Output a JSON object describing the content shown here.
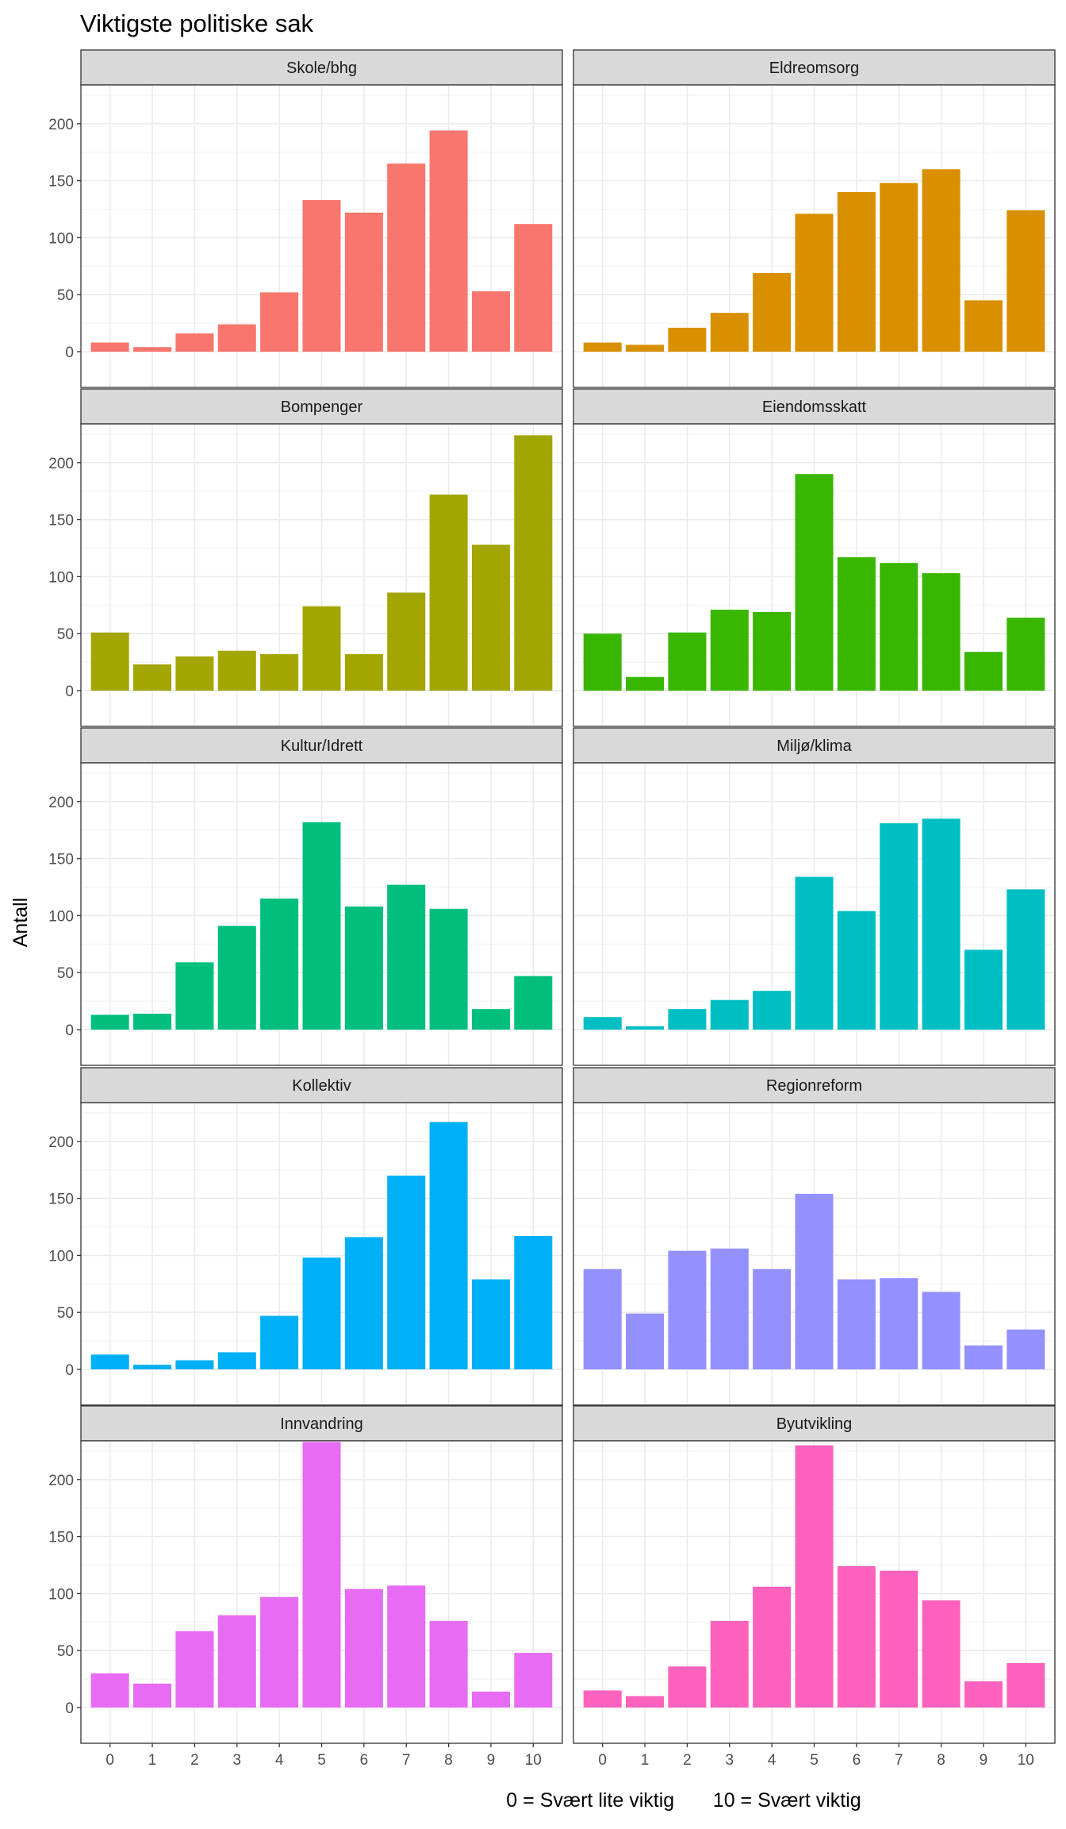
{
  "chart_data": {
    "type": "bar",
    "title": "Viktigste politiske sak",
    "ylabel": "Antall",
    "xlabel": "0 = Svært lite viktig       10 = Svært viktig",
    "categories": [
      "0",
      "1",
      "2",
      "3",
      "4",
      "5",
      "6",
      "7",
      "8",
      "9",
      "10"
    ],
    "ylim": [
      0,
      240
    ],
    "yticks": [
      0,
      50,
      100,
      150,
      200
    ],
    "grid": true,
    "legend": "none",
    "panels": [
      {
        "name": "Skole/bhg",
        "color": "#F8766D",
        "values": [
          8,
          4,
          16,
          24,
          52,
          133,
          122,
          165,
          194,
          53,
          112
        ]
      },
      {
        "name": "Eldreomsorg",
        "color": "#D89000",
        "values": [
          8,
          6,
          21,
          34,
          69,
          121,
          140,
          148,
          160,
          45,
          124
        ]
      },
      {
        "name": "Bompenger",
        "color": "#A3A500",
        "values": [
          51,
          23,
          30,
          35,
          32,
          74,
          32,
          86,
          172,
          128,
          224
        ]
      },
      {
        "name": "Eiendomsskatt",
        "color": "#39B600",
        "values": [
          50,
          12,
          51,
          71,
          69,
          190,
          117,
          112,
          103,
          34,
          64
        ]
      },
      {
        "name": "Kultur/Idrett",
        "color": "#00BF7D",
        "values": [
          13,
          14,
          59,
          91,
          115,
          182,
          108,
          127,
          106,
          18,
          47
        ]
      },
      {
        "name": "Miljø/klima",
        "color": "#00BFC4",
        "values": [
          11,
          3,
          18,
          26,
          34,
          134,
          104,
          181,
          185,
          70,
          123
        ]
      },
      {
        "name": "Kollektiv",
        "color": "#00B0F6",
        "values": [
          13,
          4,
          8,
          15,
          47,
          98,
          116,
          170,
          217,
          79,
          117
        ]
      },
      {
        "name": "Regionreform",
        "color": "#9590FF",
        "values": [
          88,
          49,
          104,
          106,
          88,
          154,
          79,
          80,
          68,
          21,
          35
        ]
      },
      {
        "name": "Innvandring",
        "color": "#E76BF3",
        "values": [
          30,
          21,
          67,
          81,
          97,
          233,
          104,
          107,
          76,
          14,
          48
        ]
      },
      {
        "name": "Byutvikling",
        "color": "#FF62BC",
        "values": [
          15,
          10,
          36,
          76,
          106,
          230,
          124,
          120,
          94,
          23,
          39
        ]
      }
    ]
  }
}
